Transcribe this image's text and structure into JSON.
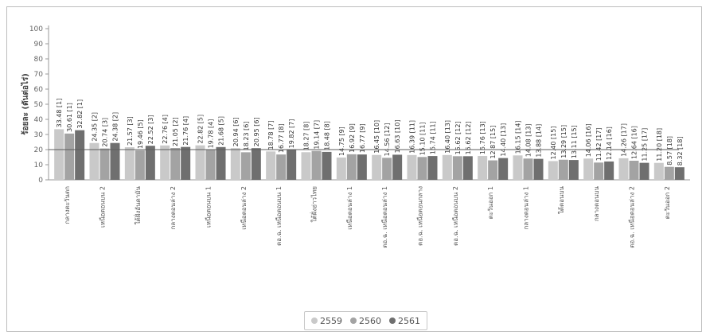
{
  "chart_data": {
    "type": "bar",
    "ylabel": "ร้อยละ (ตันต่อไร่)",
    "ylim": [
      0,
      100
    ],
    "yticks": [
      0,
      10,
      20,
      30,
      40,
      50,
      60,
      70,
      80,
      90,
      100
    ],
    "grid": false,
    "legend_position": "bottom",
    "reference_line": 20,
    "categories": [
      "กลางตะวันตก",
      "เหนือตอนบน 2",
      "ใต้ฝั่งอันดามัน",
      "กลางตอนล่าง 2",
      "เหนือตอนบน 1",
      "เหนือตอนล่าง 2",
      "ตอ.ฉ. เหนือตอนบน 1",
      "ใต้ฝั่งอ่าวไทย",
      "เหนือตอนล่าง 1",
      "ตอ.ฉ. เหนือตอนล่าง 1",
      "ตอ.ฉ. เหนือตอนกลาง",
      "ตอ.ฉ. เหนือตอนบน 2",
      "ตะวันออก 1",
      "กลางตอนล่าง 1",
      "ใต้ตอนบน",
      "กลางตอนบน",
      "ตอ.ฉ. เหนือตอนล่าง 2",
      "ตะวันออก 2"
    ],
    "series": [
      {
        "name": "2559",
        "color": "#c9c9c9",
        "values": [
          33.48,
          24.35,
          21.57,
          22.76,
          22.82,
          20.94,
          18.78,
          18.27,
          14.75,
          16.45,
          16.39,
          16.4,
          15.76,
          16.15,
          12.4,
          14.06,
          14.26,
          11.2
        ],
        "labels": [
          "33.48 [1]",
          "24.35 [2]",
          "21.57 [3]",
          "22.76 [4]",
          "22.82 [5]",
          "20.94 [6]",
          "18.78 [7]",
          "18.27 [8]",
          "14.75 [9]",
          "16.45 [10]",
          "16.39 [11]",
          "16.40 [13]",
          "15.76 [13]",
          "16.15 [14]",
          "12.40 [15]",
          "14.06 [16]",
          "14.26 [17]",
          "11.20 [18]"
        ]
      },
      {
        "name": "2560",
        "color": "#a3a3a3",
        "values": [
          30.61,
          20.74,
          19.46,
          21.05,
          19.78,
          18.23,
          16.77,
          19.14,
          16.92,
          14.56,
          15.1,
          15.62,
          12.87,
          14.08,
          13.29,
          11.42,
          12.64,
          8.57
        ],
        "labels": [
          "30.61 [1]",
          "20.74 [3]",
          "19.46 [5]",
          "21.05 [2]",
          "19.78 [4]",
          "18.23 [6]",
          "16.77 [8]",
          "19.14 [7]",
          "16.92 [9]",
          "14.56 [12]",
          "15.10 [11]",
          "15.62 [12]",
          "12.87 [15]",
          "14.08 [13]",
          "13.29 [15]",
          "11.42 [17]",
          "12.64 [16]",
          "8.57 [18]"
        ]
      },
      {
        "name": "2561",
        "color": "#6f6f6f",
        "values": [
          32.82,
          24.38,
          22.52,
          21.76,
          21.68,
          20.95,
          19.82,
          18.48,
          16.77,
          16.63,
          15.74,
          15.62,
          14.4,
          13.88,
          13.11,
          12.14,
          11.25,
          8.32
        ],
        "labels": [
          "32.82 [1]",
          "24.38 [2]",
          "22.52 [3]",
          "21.76 [4]",
          "21.68 [5]",
          "20.95 [6]",
          "19.82 [7]",
          "18.48 [8]",
          "16.77 [9]",
          "16.63 [10]",
          "15.74 [11]",
          "15.62 [12]",
          "14.40 [13]",
          "13.88 [14]",
          "13.11 [15]",
          "12.14 [16]",
          "11.25 [17]",
          "8.32 [18]"
        ]
      }
    ]
  }
}
